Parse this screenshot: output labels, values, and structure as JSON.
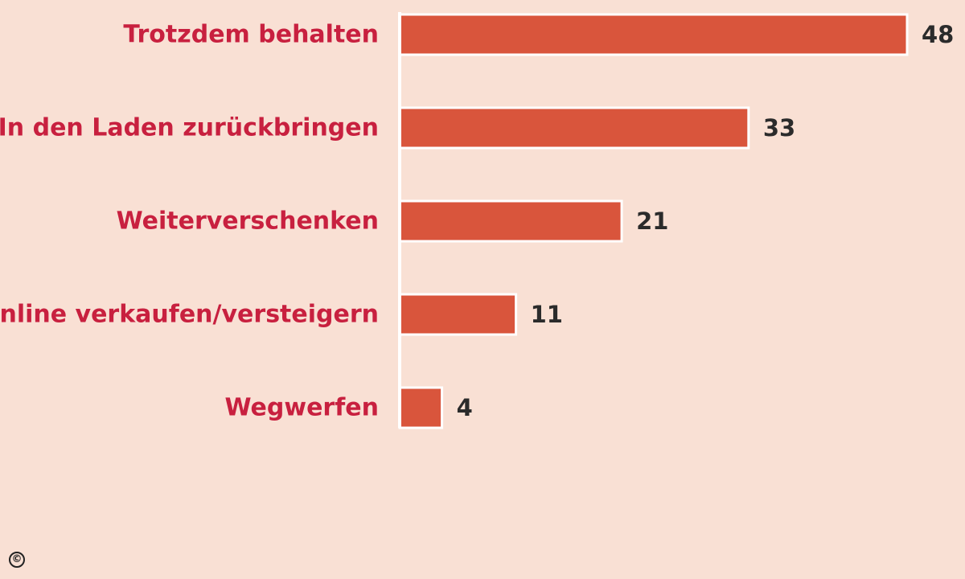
{
  "chart_data": {
    "type": "bar",
    "orientation": "horizontal",
    "categories": [
      "Trotzdem behalten",
      "In den Laden zurückbringen",
      "Weiterverschenken",
      "Online verkaufen/versteigern",
      "Wegwerfen"
    ],
    "values": [
      48,
      33,
      21,
      11,
      4
    ],
    "value_labels": [
      "48",
      "33",
      "21",
      "11",
      "4"
    ],
    "title": "",
    "xlabel": "",
    "ylabel": "",
    "xlim": [
      0,
      48
    ],
    "grid": false,
    "legend": "none"
  },
  "colors": {
    "background": "#f9e0d4",
    "bar": "#d9553c",
    "bar_outline": "#ffffff",
    "category_text": "#c8203f",
    "value_text": "#2b2b2b",
    "axis_line": "#ffffff"
  },
  "watermark": {
    "symbol": "©"
  }
}
